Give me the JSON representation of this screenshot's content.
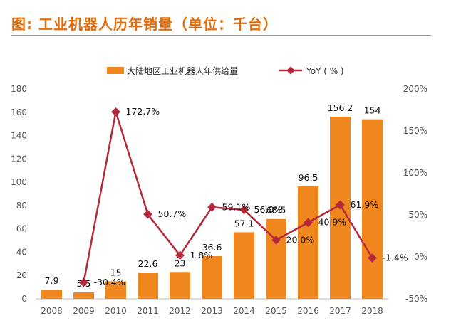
{
  "title": "图: 工业机器人历年销量（单位：千台）",
  "colors": {
    "title": "#e46c0a",
    "bar": "#f0861e",
    "line": "#b5283a"
  },
  "chart_data": {
    "type": "bar",
    "categories": [
      "2008",
      "2009",
      "2010",
      "2011",
      "2012",
      "2013",
      "2014",
      "2015",
      "2016",
      "2017",
      "2018"
    ],
    "series": [
      {
        "name": "大陆地区工业机器人年供给量",
        "type": "bar",
        "axis": "left",
        "values": [
          7.9,
          5.5,
          15,
          22.6,
          23,
          36.6,
          57.1,
          68.5,
          96.5,
          156.2,
          154
        ],
        "labels": [
          "7.9",
          "5.5",
          "15",
          "22.6",
          "23",
          "36.6",
          "57.1",
          "68.5",
          "96.5",
          "156.2",
          "154"
        ]
      },
      {
        "name": "YoY（%）",
        "type": "line",
        "axis": "right",
        "values": [
          null,
          -30.4,
          172.7,
          50.7,
          1.8,
          59.1,
          56.0,
          20.0,
          40.9,
          61.9,
          -1.4
        ],
        "labels": [
          "",
          "-30.4%",
          "172.7%",
          "50.7%",
          "1.8%",
          "59.1%",
          "56.0%",
          "20.0%",
          "40.9%",
          "61.9%",
          "-1.4%"
        ]
      }
    ],
    "y_left": {
      "lim": [
        0,
        180
      ],
      "ticks": [
        "0",
        "20",
        "40",
        "60",
        "80",
        "100",
        "120",
        "140",
        "160",
        "180"
      ]
    },
    "y_right": {
      "lim": [
        -50,
        200
      ],
      "ticks": [
        "-50%",
        "0%",
        "50%",
        "100%",
        "150%",
        "200%"
      ]
    },
    "legend": "top-center",
    "grid": false
  }
}
